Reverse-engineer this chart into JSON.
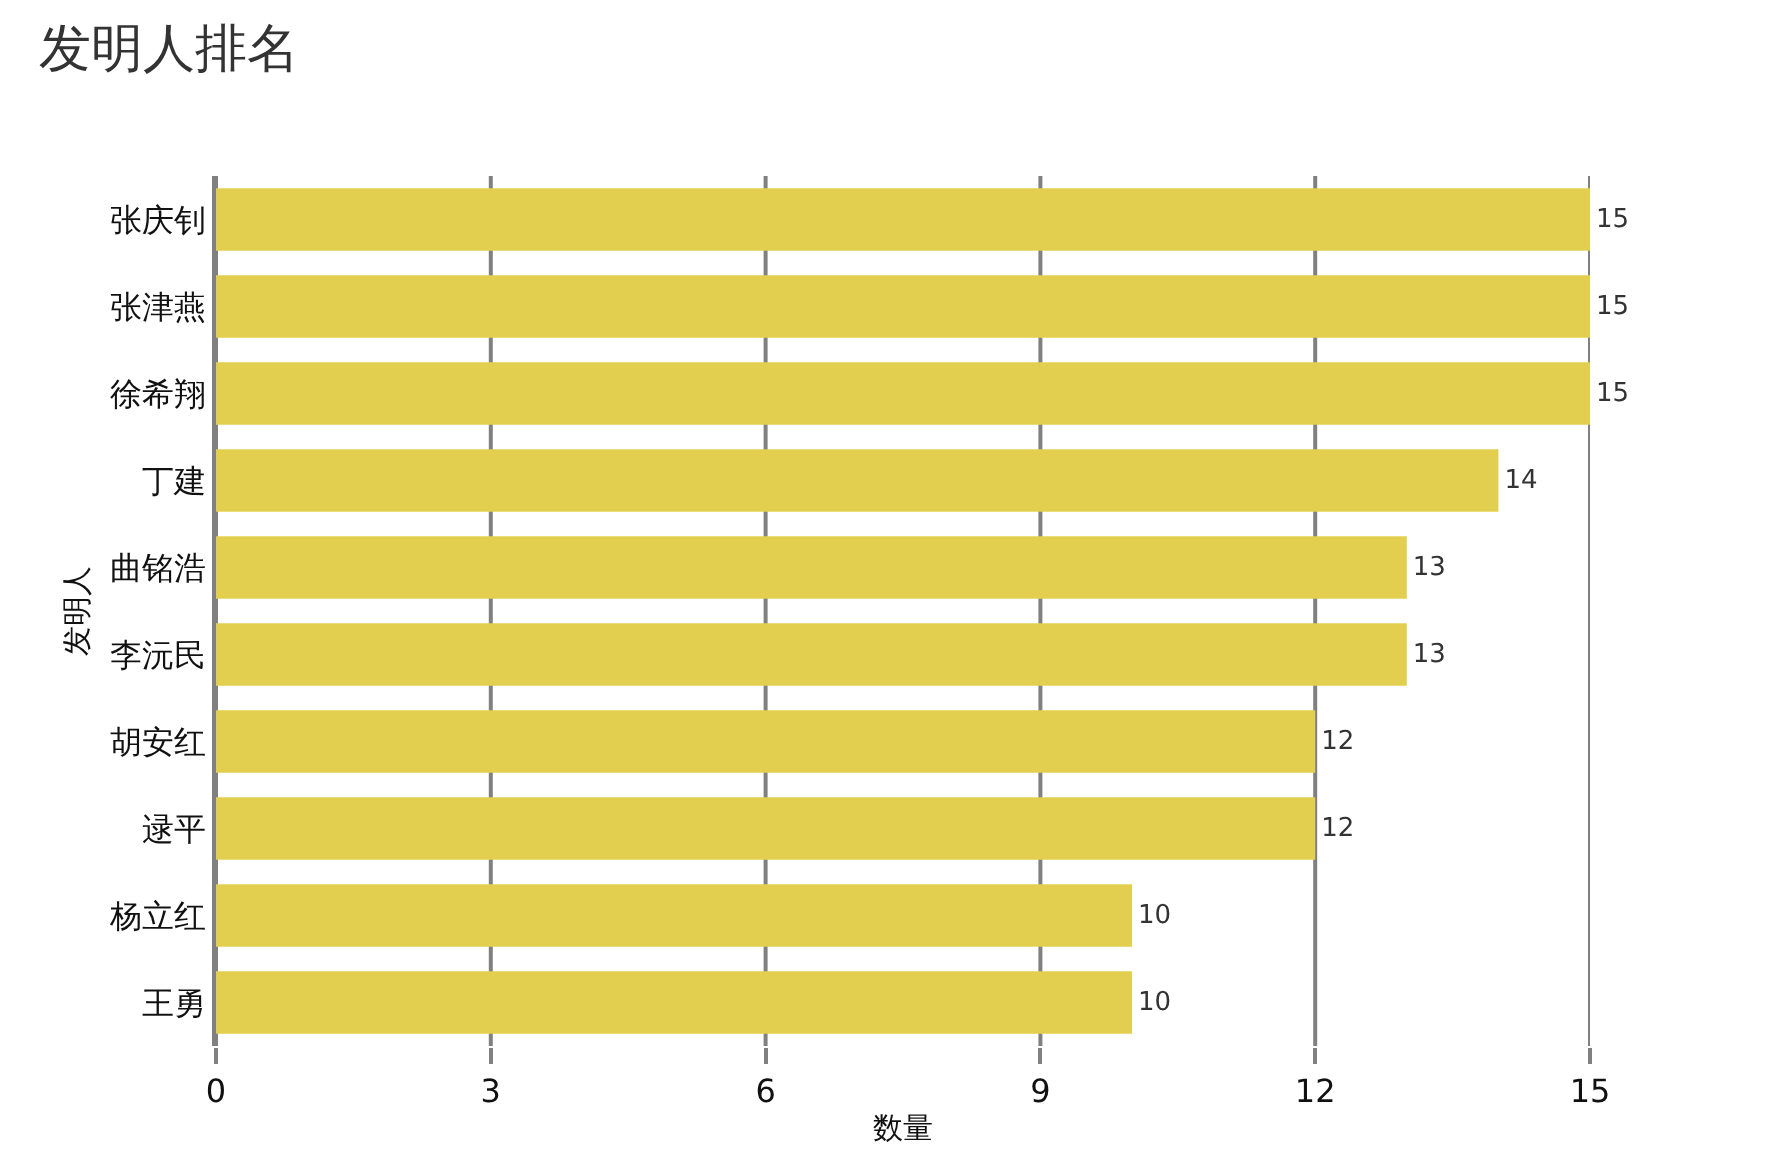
{
  "chart_data": {
    "type": "bar",
    "orientation": "horizontal",
    "title": "发明人排名",
    "xlabel": "数量",
    "ylabel": "发明人",
    "categories": [
      "张庆钊",
      "张津燕",
      "徐希翔",
      "丁建",
      "曲铭浩",
      "李沅民",
      "胡安红",
      "逯平",
      "杨立红",
      "王勇"
    ],
    "values": [
      15,
      15,
      15,
      14,
      13,
      13,
      12,
      12,
      10,
      10
    ],
    "color": "#e3cf4f",
    "xlim": [
      0,
      15
    ],
    "xticks": [
      0,
      3,
      6,
      9,
      12,
      15
    ],
    "grid": "x",
    "data_labels": true
  }
}
